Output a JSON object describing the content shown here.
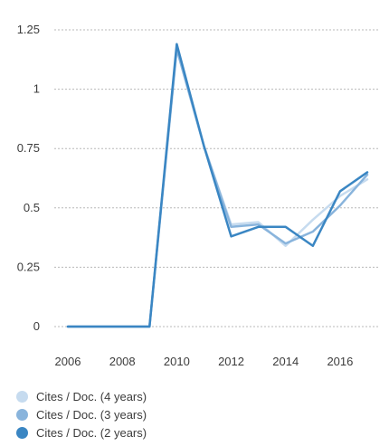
{
  "chart_data": {
    "type": "line",
    "x": [
      2006,
      2007,
      2008,
      2009,
      2010,
      2011,
      2012,
      2013,
      2014,
      2015,
      2016,
      2017
    ],
    "xticks": [
      "2006",
      "2008",
      "2010",
      "2012",
      "2014",
      "2016"
    ],
    "xlim": [
      2006,
      2017
    ],
    "yticks": [
      "0",
      "0.25",
      "0.5",
      "0.75",
      "1",
      "1.25"
    ],
    "ylim": [
      0,
      1.25
    ],
    "grid": true,
    "legend_position": "bottom-left",
    "series": [
      {
        "name": "Cites / Doc. (4 years)",
        "color": "#c6dbef",
        "values": [
          0,
          0,
          0,
          0,
          1.17,
          0.76,
          0.43,
          0.44,
          0.34,
          0.45,
          0.55,
          0.62
        ]
      },
      {
        "name": "Cites / Doc. (3 years)",
        "color": "#89b4dc",
        "values": [
          0,
          0,
          0,
          0,
          1.17,
          0.76,
          0.42,
          0.43,
          0.35,
          0.4,
          0.51,
          0.64
        ]
      },
      {
        "name": "Cites / Doc. (2 years)",
        "color": "#3a86c3",
        "values": [
          0,
          0,
          0,
          0,
          1.19,
          0.76,
          0.38,
          0.42,
          0.42,
          0.34,
          0.57,
          0.65
        ]
      }
    ]
  }
}
